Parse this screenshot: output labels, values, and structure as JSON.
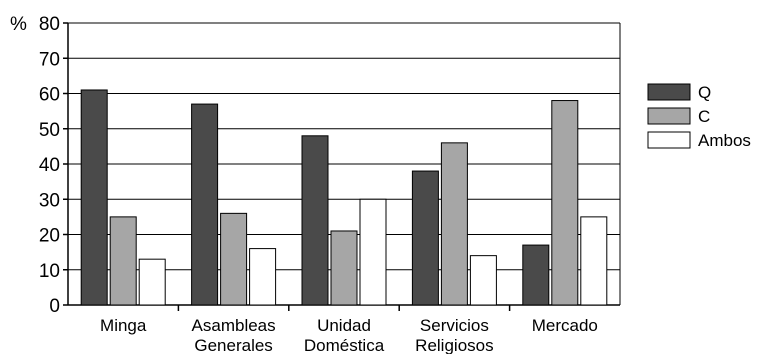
{
  "chart_data": {
    "type": "bar",
    "y_unit_label": "%",
    "categories": [
      [
        "Minga"
      ],
      [
        "Asambleas",
        "Generales"
      ],
      [
        "Unidad",
        "Doméstica"
      ],
      [
        "Servicios",
        "Religiosos"
      ],
      [
        "Mercado"
      ]
    ],
    "series": [
      {
        "name": "Q",
        "color": "#4a4a4a",
        "values": [
          61,
          57,
          48,
          38,
          17
        ]
      },
      {
        "name": "C",
        "color": "#a6a6a6",
        "values": [
          25,
          26,
          21,
          46,
          58
        ]
      },
      {
        "name": "Ambos",
        "color": "#ffffff",
        "values": [
          13,
          16,
          30,
          14,
          25
        ]
      }
    ],
    "ylim": [
      0,
      80
    ],
    "yticks": [
      "0",
      "10",
      "20",
      "30",
      "40",
      "50",
      "60",
      "70",
      "80"
    ],
    "grid": true,
    "legend_position": "right"
  }
}
